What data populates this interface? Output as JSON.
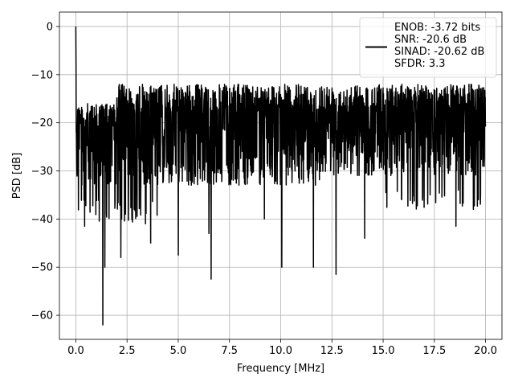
{
  "chart_data": {
    "type": "line",
    "title": "",
    "xlabel": "Frequency [MHz]",
    "ylabel": "PSD [dB]",
    "xlim": [
      -0.8,
      20.8
    ],
    "ylim": [
      -65,
      3
    ],
    "xticks": [
      0.0,
      2.5,
      5.0,
      7.5,
      10.0,
      12.5,
      15.0,
      17.5,
      20.0
    ],
    "xtick_labels": [
      "0.0",
      "2.5",
      "5.0",
      "7.5",
      "10.0",
      "12.5",
      "15.0",
      "17.5",
      "20.0"
    ],
    "yticks": [
      0,
      -10,
      -20,
      -30,
      -40,
      -50,
      -60
    ],
    "ytick_labels": [
      "0",
      "−10",
      "−20",
      "−30",
      "−40",
      "−50",
      "−60"
    ],
    "grid": true,
    "legend_position": "top-right",
    "series": [
      {
        "name": "ENOB: -3.72 bits\nSNR: -20.6 dB\nSINAD: -20.62 dB\nSFDR: 3.3",
        "color": "#000000",
        "x_range": [
          0,
          20
        ],
        "num_points": 2048,
        "peak": {
          "x": 0.0,
          "y": 0.0
        },
        "baseline_level": -20,
        "upper_envelope_db": -12,
        "typical_trough_db": -33,
        "deep_nulls": [
          {
            "x": 1.32,
            "y": -62
          },
          {
            "x": 1.42,
            "y": -50
          },
          {
            "x": 0.43,
            "y": -41.5
          },
          {
            "x": 2.2,
            "y": -48
          },
          {
            "x": 3.4,
            "y": -41
          },
          {
            "x": 3.65,
            "y": -45
          },
          {
            "x": 5.0,
            "y": -47.5
          },
          {
            "x": 6.6,
            "y": -52.5
          },
          {
            "x": 6.5,
            "y": -43
          },
          {
            "x": 9.2,
            "y": -40
          },
          {
            "x": 10.05,
            "y": -50
          },
          {
            "x": 11.6,
            "y": -50
          },
          {
            "x": 12.7,
            "y": -51.5
          },
          {
            "x": 14.1,
            "y": -44
          },
          {
            "x": 18.55,
            "y": -41.5
          },
          {
            "x": 19.4,
            "y": -38
          }
        ]
      }
    ]
  }
}
